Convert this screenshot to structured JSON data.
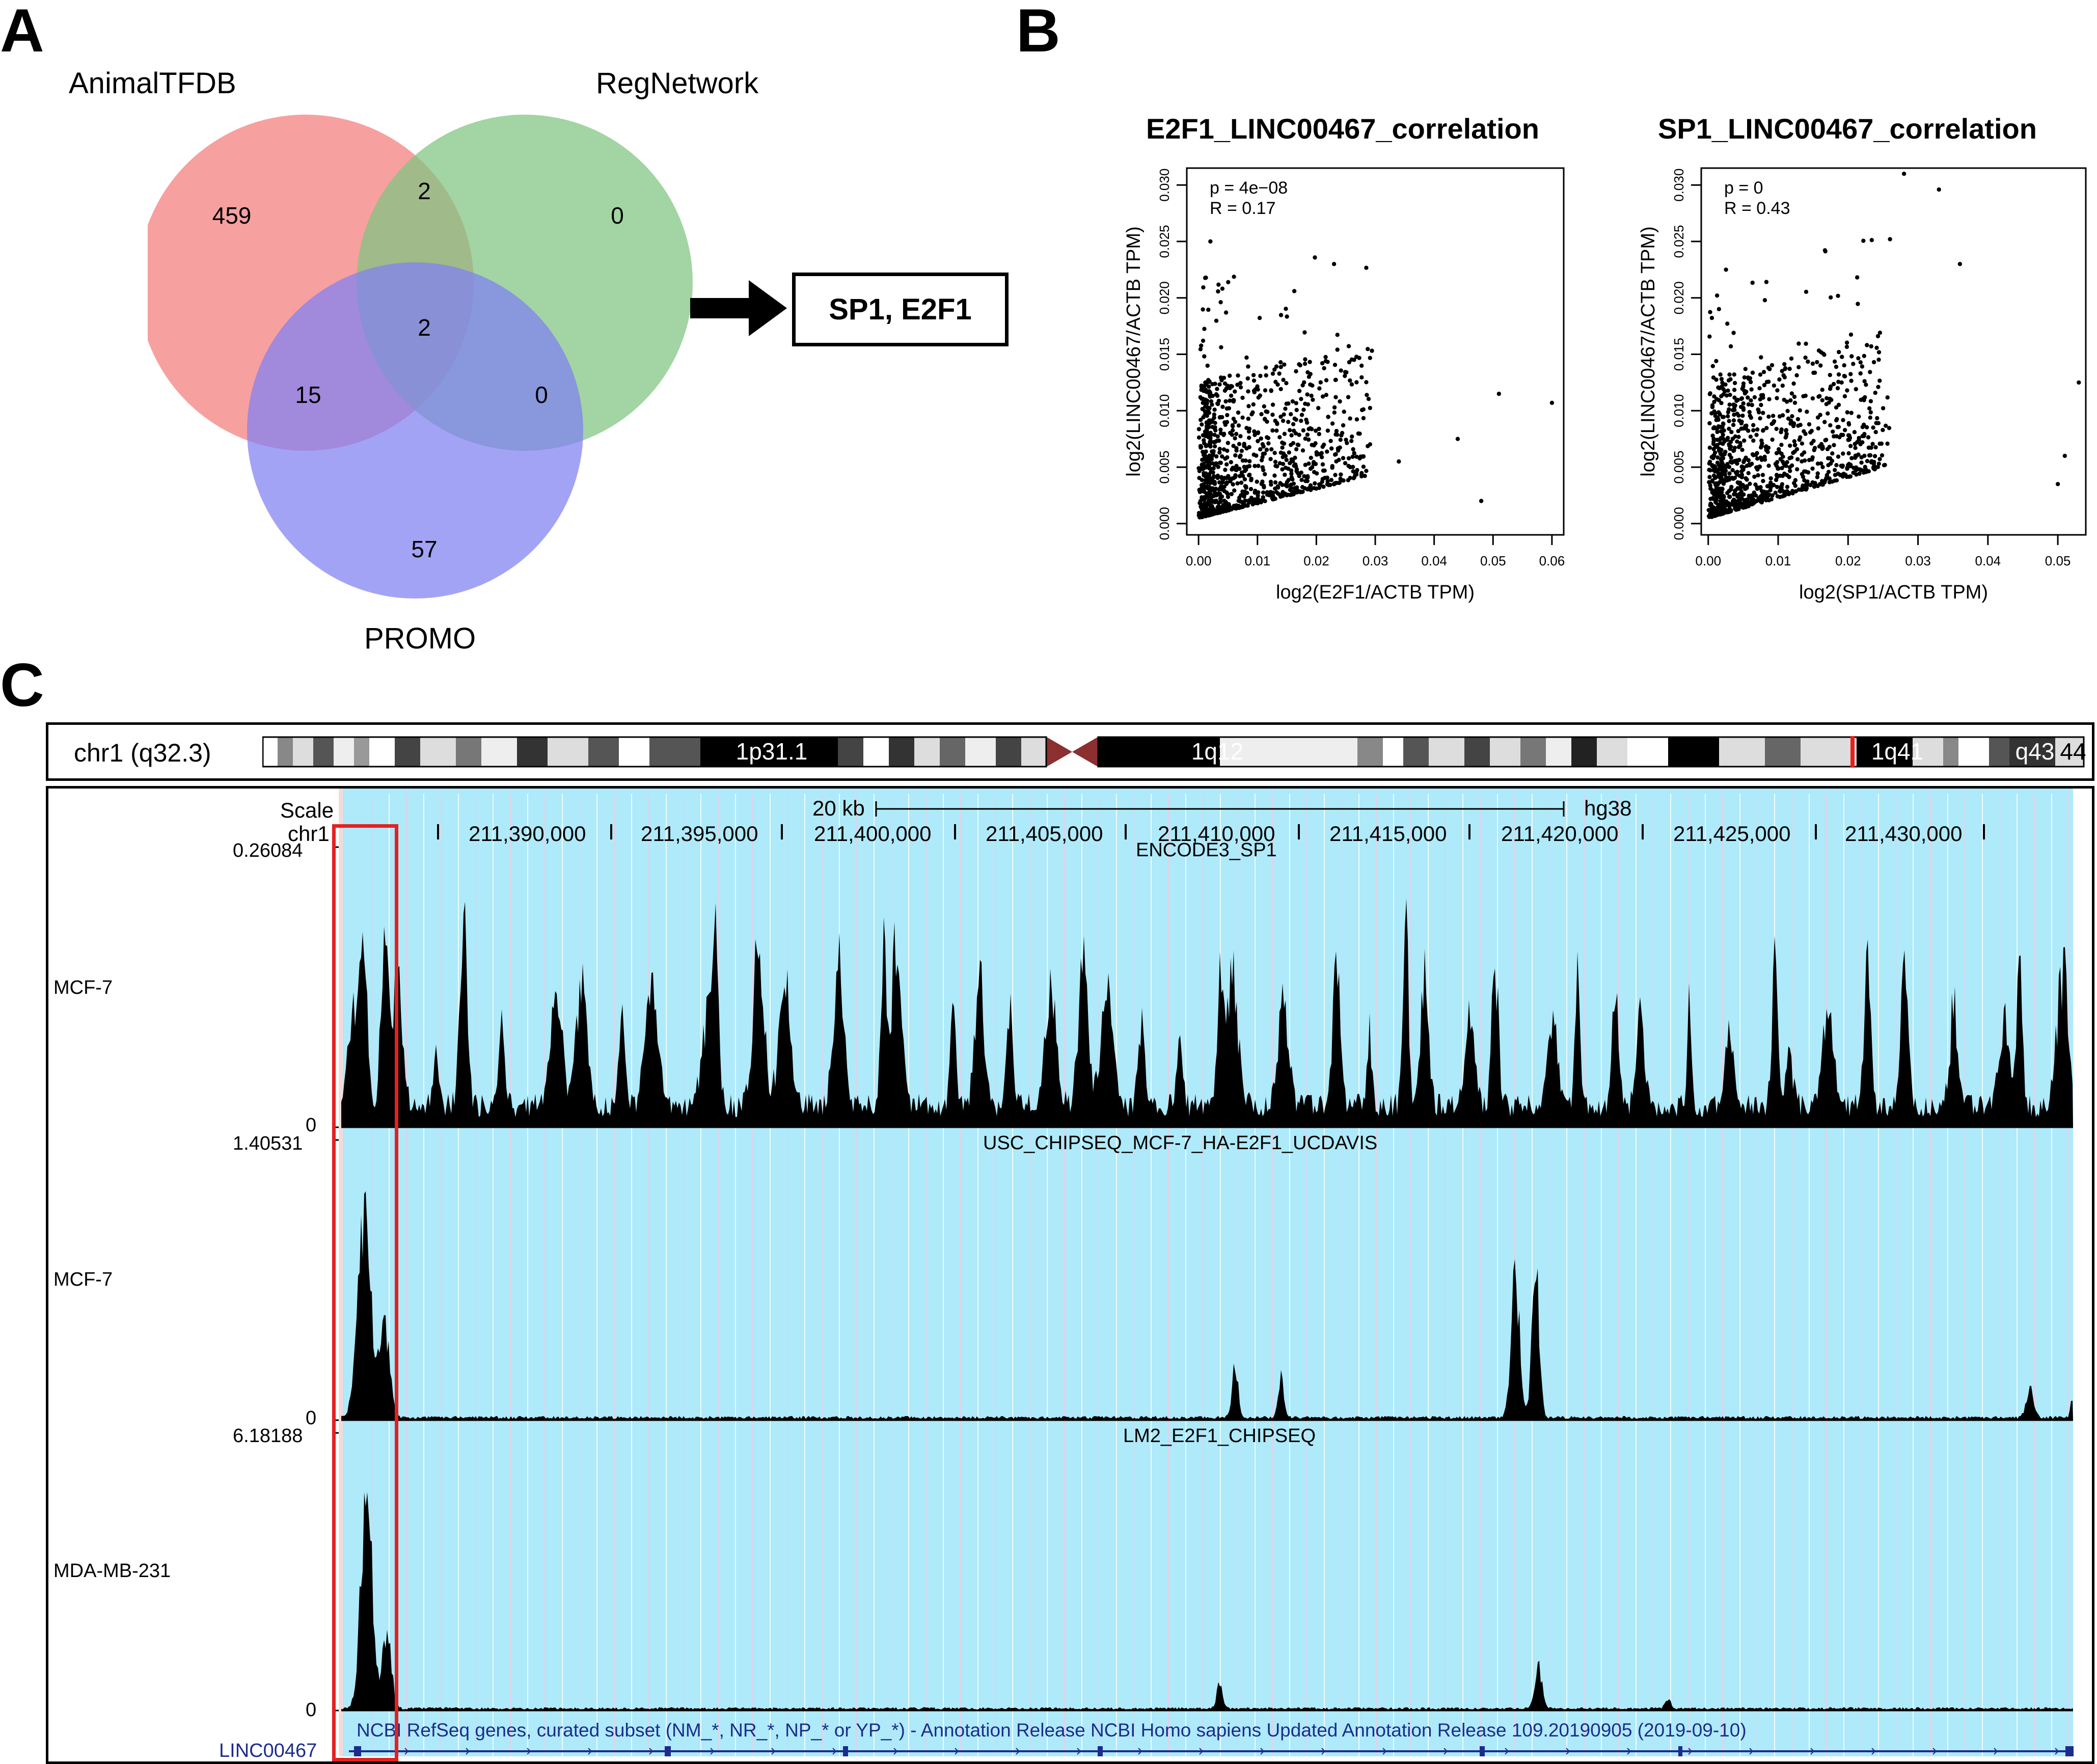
{
  "panels": {
    "a": "A",
    "b": "B",
    "c": "C"
  },
  "venn": {
    "sets": [
      "AnimalTFDB",
      "RegNetwork",
      "PROMO"
    ],
    "counts": {
      "a_only": "459",
      "ab": "2",
      "b_only": "0",
      "abc": "2",
      "ac": "15",
      "bc": "0",
      "c_only": "57"
    },
    "result": "SP1, E2F1",
    "colors": {
      "a": "#f47c7c",
      "b": "#7fc47f",
      "c": "#7f7ff2"
    }
  },
  "chart_data": [
    {
      "type": "scatter",
      "title": "E2F1_LINC00467_correlation",
      "xlabel": "log2(E2F1/ACTB TPM)",
      "ylabel": "log2(LINC00467/ACTB TPM)",
      "xlim": [
        -0.002,
        0.062
      ],
      "ylim": [
        -0.001,
        0.0315
      ],
      "xticks": [
        "0.00",
        "0.01",
        "0.02",
        "0.03",
        "0.04",
        "0.05",
        "0.06"
      ],
      "yticks": [
        "0.000",
        "0.005",
        "0.010",
        "0.015",
        "0.020",
        "0.025",
        "0.030"
      ],
      "stats": {
        "p": "p = 4e−08",
        "r": "R = 0.17"
      },
      "notable_points": [
        [
          0.002,
          0.025
        ],
        [
          0.023,
          0.023
        ],
        [
          0.051,
          0.0115
        ],
        [
          0.06,
          0.0107
        ],
        [
          0.048,
          0.002
        ],
        [
          0.044,
          0.0075
        ],
        [
          0.034,
          0.0055
        ]
      ]
    },
    {
      "type": "scatter",
      "title": "SP1_LINC00467_correlation",
      "xlabel": "log2(SP1/ACTB TPM)",
      "ylabel": "log2(LINC00467/ACTB TPM)",
      "xlim": [
        -0.001,
        0.054
      ],
      "ylim": [
        -0.001,
        0.0315
      ],
      "xticks": [
        "0.00",
        "0.01",
        "0.02",
        "0.03",
        "0.04",
        "0.05"
      ],
      "yticks": [
        "0.000",
        "0.005",
        "0.010",
        "0.015",
        "0.020",
        "0.025",
        "0.030"
      ],
      "stats": {
        "p": "p = 0",
        "r": "R = 0.43"
      },
      "notable_points": [
        [
          0.028,
          0.031
        ],
        [
          0.033,
          0.0296
        ],
        [
          0.026,
          0.0252
        ],
        [
          0.036,
          0.023
        ],
        [
          0.053,
          0.0125
        ],
        [
          0.051,
          0.006
        ],
        [
          0.05,
          0.0035
        ]
      ]
    },
    {
      "type": "area",
      "title": "ENCODE3_SP1",
      "cell": "MCF-7",
      "ymax": "0.26084",
      "ymin": "0"
    },
    {
      "type": "area",
      "title": "USC_CHIPSEQ_MCF-7_HA-E2F1_UCDAVIS",
      "cell": "MCF-7",
      "ymax": "1.40531",
      "ymin": "0"
    },
    {
      "type": "area",
      "title": "LM2_E2F1_CHIPSEQ",
      "cell": "MDA-MB-231",
      "ymax": "6.18188",
      "ymin": "0"
    }
  ],
  "ideogram": {
    "label": "chr1 (q32.3)",
    "bands": [
      "1p31.1",
      "1q12",
      "1q41",
      "q43",
      "44"
    ]
  },
  "browser": {
    "scale_label": "Scale",
    "chrom": "chr1",
    "scale_bar": "20 kb",
    "assembly": "hg38",
    "positions": [
      "211,390,000",
      "211,395,000",
      "211,400,000",
      "211,405,000",
      "211,410,000",
      "211,415,000",
      "211,420,000",
      "211,425,000",
      "211,430,000"
    ],
    "refseq_title": "NCBI RefSeq genes, curated subset (NM_*, NR_*, NP_* or YP_*) - Annotation Release NCBI Homo sapiens Updated Annotation Release 109.20190905 (2019-09-10)",
    "gene": "LINC00467",
    "colors": {
      "highlight": "#aeeafa",
      "box": "#e52020",
      "gene": "#1c2c8c"
    }
  }
}
